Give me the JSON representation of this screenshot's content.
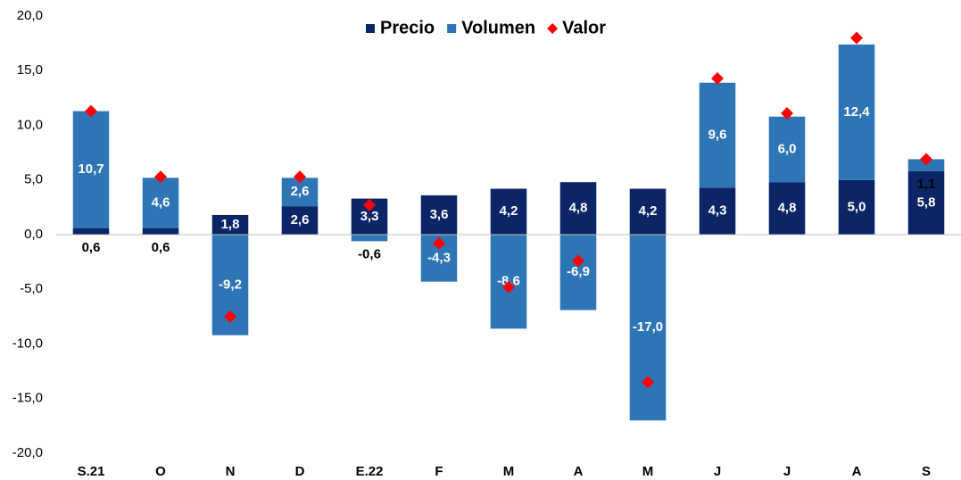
{
  "chart_data": {
    "type": "stacked_bar",
    "categories": [
      "S.21",
      "O",
      "N",
      "D",
      "E.22",
      "F",
      "M",
      "A",
      "M",
      "J",
      "J",
      "A",
      "S"
    ],
    "series": [
      {
        "name": "Precio",
        "color": "#0b2566",
        "kind": "bar",
        "values": [
          0.6,
          0.6,
          1.8,
          2.6,
          3.3,
          3.6,
          4.2,
          4.8,
          4.2,
          4.3,
          4.8,
          5.0,
          5.8
        ],
        "value_labels": [
          "0,6",
          "0,6",
          "1,8",
          "2,6",
          "3,3",
          "3,6",
          "4,2",
          "4,8",
          "4,2",
          "4,3",
          "4,8",
          "5,0",
          "5,8"
        ]
      },
      {
        "name": "Volumen",
        "color": "#2e75b6",
        "kind": "bar",
        "values": [
          10.7,
          4.6,
          -9.2,
          2.6,
          -0.6,
          -4.3,
          -8.6,
          -6.9,
          -17.0,
          9.6,
          6.0,
          12.4,
          1.1
        ],
        "value_labels": [
          "10,7",
          "4,6",
          "-9,2",
          "2,6",
          "-0,6",
          "-4,3",
          "-8,6",
          "-6,9",
          "-17,0",
          "9,6",
          "6,0",
          "12,4",
          "1,1"
        ]
      },
      {
        "name": "Valor",
        "color": "#ff0000",
        "kind": "diamond",
        "values": [
          11.3,
          5.3,
          -7.5,
          5.3,
          2.7,
          -0.8,
          -4.8,
          -2.4,
          -13.5,
          14.3,
          11.1,
          18.0,
          6.9
        ]
      }
    ],
    "ylim": [
      -20,
      20
    ],
    "yticks": [
      {
        "value": -20,
        "label": "-20,0"
      },
      {
        "value": -15,
        "label": "-15,0"
      },
      {
        "value": -10,
        "label": "-10,0"
      },
      {
        "value": -5,
        "label": "-5,0"
      },
      {
        "value": 0,
        "label": "0,0"
      },
      {
        "value": 5,
        "label": "5,0"
      },
      {
        "value": 10,
        "label": "10,0"
      },
      {
        "value": 15,
        "label": "15,0"
      },
      {
        "value": 20,
        "label": "20,0"
      }
    ],
    "grid": false,
    "legend": "top"
  }
}
